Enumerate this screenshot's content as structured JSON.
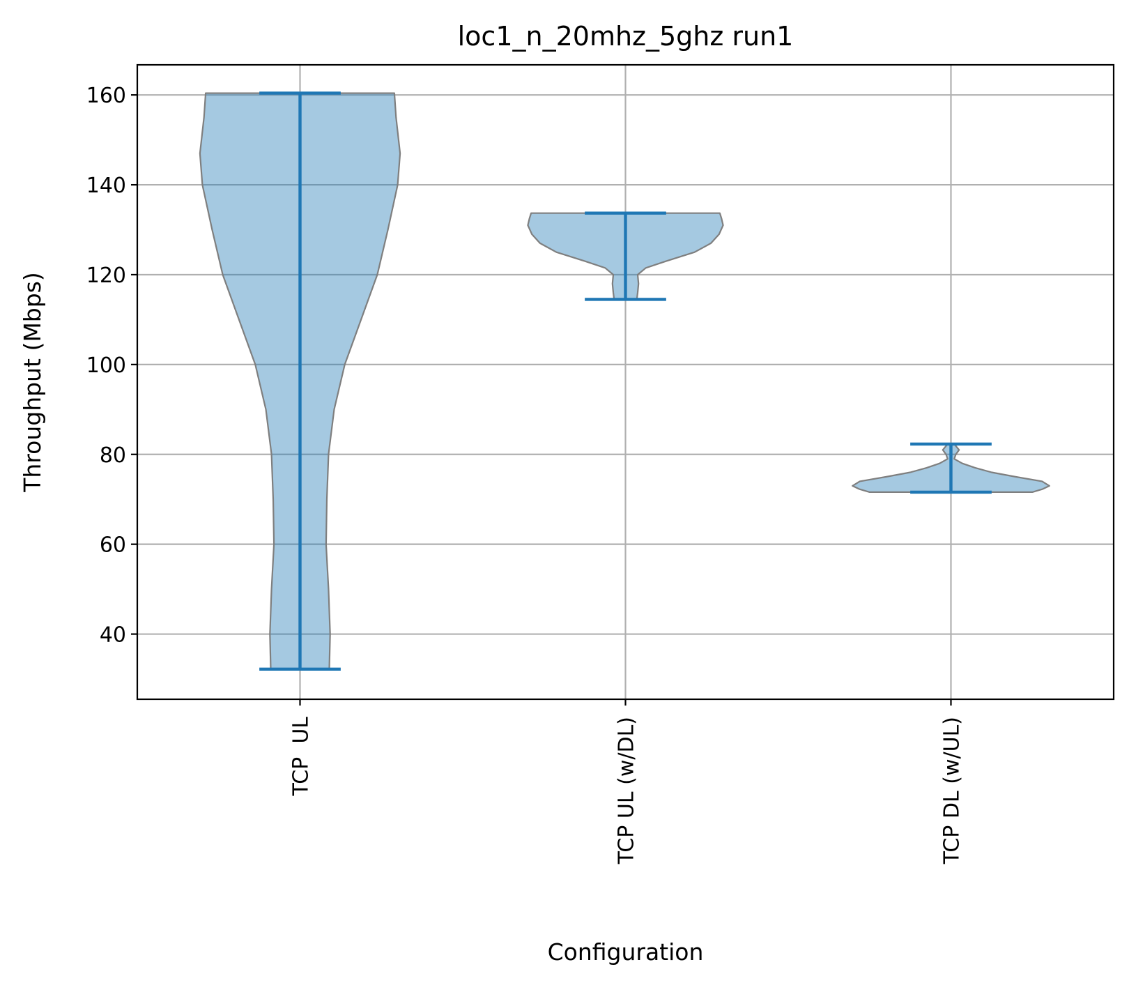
{
  "chart_data": {
    "type": "violin",
    "title": "loc1_n_20mhz_5ghz run1",
    "xlabel": "Configuration",
    "ylabel": "Throughput (Mbps)",
    "ylim": [
      25.5,
      166.7
    ],
    "yticks": [
      40,
      60,
      80,
      100,
      120,
      140,
      160
    ],
    "grid": true,
    "colors": {
      "accent": "#1f77b4",
      "body_fill": "#1f77b4",
      "body_edge": "#7f7f7f",
      "grid": "#b0b0b0"
    },
    "categories": [
      "TCP  UL",
      "TCP UL (w/DL)",
      "TCP DL (w/UL)"
    ],
    "series": [
      {
        "min": 32.2,
        "max": 160.4,
        "density": [
          [
            32.2,
            0.36
          ],
          [
            40,
            0.37
          ],
          [
            50,
            0.35
          ],
          [
            60,
            0.32
          ],
          [
            70,
            0.33
          ],
          [
            80,
            0.35
          ],
          [
            90,
            0.42
          ],
          [
            100,
            0.55
          ],
          [
            110,
            0.75
          ],
          [
            120,
            0.95
          ],
          [
            130,
            1.08
          ],
          [
            140,
            1.2
          ],
          [
            147,
            1.23
          ],
          [
            155,
            1.18
          ],
          [
            160.4,
            1.16
          ]
        ]
      },
      {
        "min": 114.5,
        "max": 133.7,
        "density": [
          [
            114.5,
            0.14
          ],
          [
            116,
            0.15
          ],
          [
            118,
            0.16
          ],
          [
            120,
            0.15
          ],
          [
            121.5,
            0.25
          ],
          [
            123,
            0.5
          ],
          [
            125,
            0.85
          ],
          [
            127,
            1.05
          ],
          [
            129,
            1.15
          ],
          [
            131,
            1.2
          ],
          [
            132.5,
            1.18
          ],
          [
            133.7,
            1.16
          ]
        ]
      },
      {
        "min": 71.6,
        "max": 82.3,
        "density": [
          [
            71.6,
            1.0
          ],
          [
            72.3,
            1.13
          ],
          [
            73,
            1.21
          ],
          [
            74,
            1.12
          ],
          [
            75,
            0.8
          ],
          [
            76,
            0.5
          ],
          [
            77,
            0.3
          ],
          [
            78,
            0.14
          ],
          [
            79,
            0.04
          ],
          [
            80,
            0.06
          ],
          [
            81,
            0.1
          ],
          [
            82.3,
            0.04
          ]
        ]
      }
    ]
  }
}
